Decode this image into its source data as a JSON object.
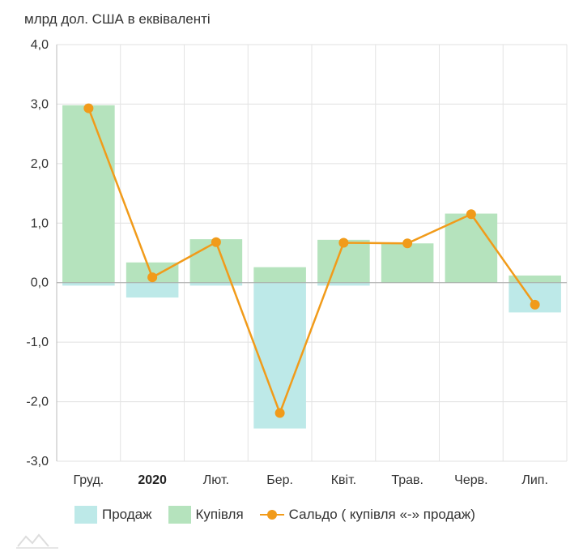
{
  "chart_data": {
    "type": "bar",
    "ylabel": "млрд дол. США в еквіваленті",
    "categories": [
      "Груд.",
      "2020",
      "Лют.",
      "Бер.",
      "Квіт.",
      "Трав.",
      "Черв.",
      "Лип."
    ],
    "bold_categories": [
      "2020"
    ],
    "ylim": [
      -3,
      4
    ],
    "yticks": [
      {
        "value": 4,
        "label": "4,0"
      },
      {
        "value": 3,
        "label": "3,0"
      },
      {
        "value": 2,
        "label": "2,0"
      },
      {
        "value": 1,
        "label": "1,0"
      },
      {
        "value": 0,
        "label": "0,0"
      },
      {
        "value": -1,
        "label": "-1,0"
      },
      {
        "value": -2,
        "label": "-2,0"
      },
      {
        "value": -3,
        "label": "-3,0"
      }
    ],
    "grid": true,
    "legend_position": "bottom",
    "series": [
      {
        "name": "Продаж",
        "kind": "bar",
        "color": "#bde9e8",
        "values": [
          -0.05,
          -0.25,
          -0.05,
          -2.45,
          -0.05,
          0.0,
          0.0,
          -0.5
        ]
      },
      {
        "name": "Купівля",
        "kind": "bar",
        "color": "#b5e3bd",
        "values": [
          2.98,
          0.34,
          0.73,
          0.26,
          0.72,
          0.66,
          1.16,
          0.12
        ]
      },
      {
        "name": "Сальдо ( купівля «-» продаж)",
        "kind": "line",
        "color": "#f19b1a",
        "values": [
          2.93,
          0.09,
          0.68,
          -2.19,
          0.67,
          0.66,
          1.15,
          -0.37
        ]
      }
    ]
  }
}
